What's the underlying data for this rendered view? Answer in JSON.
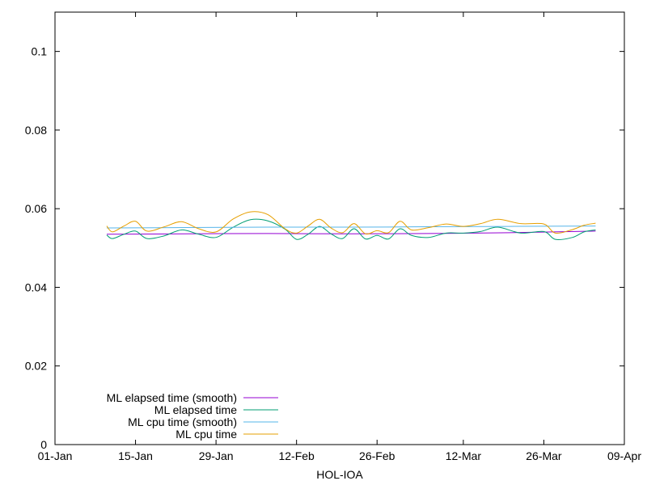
{
  "chart_data": {
    "type": "line",
    "title": "",
    "xlabel": "HOL-IOA",
    "ylabel": "",
    "x_axis": {
      "type": "date",
      "range": [
        "2024-01-01",
        "2024-04-09"
      ],
      "ticks": [
        {
          "date": "2024-01-01",
          "label": "01-Jan"
        },
        {
          "date": "2024-01-15",
          "label": "15-Jan"
        },
        {
          "date": "2024-01-29",
          "label": "29-Jan"
        },
        {
          "date": "2024-02-12",
          "label": "12-Feb"
        },
        {
          "date": "2024-02-26",
          "label": "26-Feb"
        },
        {
          "date": "2024-03-12",
          "label": "12-Mar"
        },
        {
          "date": "2024-03-26",
          "label": "26-Mar"
        },
        {
          "date": "2024-04-09",
          "label": "09-Apr"
        }
      ]
    },
    "y_axis": {
      "range": [
        0,
        0.11
      ],
      "ticks": [
        {
          "value": 0,
          "label": "0"
        },
        {
          "value": 0.02,
          "label": "0.02"
        },
        {
          "value": 0.04,
          "label": "0.04"
        },
        {
          "value": 0.06,
          "label": "0.06"
        },
        {
          "value": 0.08,
          "label": "0.08"
        },
        {
          "value": 0.1,
          "label": "0.1"
        }
      ]
    },
    "grid": false,
    "legend": {
      "position": "bottom-left"
    },
    "series": [
      {
        "name": "ML elapsed time (smooth)",
        "color": "#9400d3",
        "x": [
          "2024-01-10",
          "2024-01-24",
          "2024-02-07",
          "2024-02-21",
          "2024-03-06",
          "2024-03-20",
          "2024-04-04"
        ],
        "y": [
          0.0535,
          0.0536,
          0.0537,
          0.0536,
          0.0537,
          0.0539,
          0.0543
        ]
      },
      {
        "name": "ML elapsed time",
        "color": "#009e73",
        "x": [
          "2024-01-10",
          "2024-01-11",
          "2024-01-13",
          "2024-01-15",
          "2024-01-17",
          "2024-01-20",
          "2024-01-23",
          "2024-01-26",
          "2024-01-29",
          "2024-02-01",
          "2024-02-04",
          "2024-02-07",
          "2024-02-10",
          "2024-02-12",
          "2024-02-14",
          "2024-02-16",
          "2024-02-18",
          "2024-02-20",
          "2024-02-22",
          "2024-02-24",
          "2024-02-26",
          "2024-02-28",
          "2024-03-01",
          "2024-03-03",
          "2024-03-06",
          "2024-03-09",
          "2024-03-12",
          "2024-03-15",
          "2024-03-18",
          "2024-03-22",
          "2024-03-26",
          "2024-03-28",
          "2024-03-31",
          "2024-04-02",
          "2024-04-04"
        ],
        "y": [
          0.0533,
          0.0524,
          0.0535,
          0.0543,
          0.0524,
          0.0531,
          0.0546,
          0.0535,
          0.0527,
          0.0553,
          0.0572,
          0.0569,
          0.0548,
          0.0522,
          0.0535,
          0.0555,
          0.0536,
          0.0524,
          0.0549,
          0.0523,
          0.0532,
          0.0523,
          0.0549,
          0.0532,
          0.0527,
          0.0538,
          0.0538,
          0.0542,
          0.0553,
          0.0538,
          0.0542,
          0.0522,
          0.0527,
          0.0541,
          0.0546
        ]
      },
      {
        "name": "ML cpu time (smooth)",
        "color": "#56b4e9",
        "x": [
          "2024-01-10",
          "2024-01-24",
          "2024-02-07",
          "2024-02-21",
          "2024-03-06",
          "2024-03-20",
          "2024-04-04"
        ],
        "y": [
          0.0551,
          0.0552,
          0.0553,
          0.0553,
          0.0554,
          0.0555,
          0.0556
        ]
      },
      {
        "name": "ML cpu time",
        "color": "#e69f00",
        "x": [
          "2024-01-10",
          "2024-01-11",
          "2024-01-13",
          "2024-01-15",
          "2024-01-17",
          "2024-01-20",
          "2024-01-23",
          "2024-01-26",
          "2024-01-29",
          "2024-02-01",
          "2024-02-04",
          "2024-02-07",
          "2024-02-10",
          "2024-02-12",
          "2024-02-14",
          "2024-02-16",
          "2024-02-18",
          "2024-02-20",
          "2024-02-22",
          "2024-02-24",
          "2024-02-26",
          "2024-02-28",
          "2024-03-01",
          "2024-03-03",
          "2024-03-06",
          "2024-03-09",
          "2024-03-12",
          "2024-03-15",
          "2024-03-18",
          "2024-03-22",
          "2024-03-26",
          "2024-03-28",
          "2024-03-31",
          "2024-04-02",
          "2024-04-04"
        ],
        "y": [
          0.0556,
          0.0541,
          0.0556,
          0.0568,
          0.0543,
          0.0554,
          0.0567,
          0.0549,
          0.0541,
          0.0574,
          0.0592,
          0.0585,
          0.0549,
          0.0538,
          0.0556,
          0.0573,
          0.0551,
          0.0539,
          0.0562,
          0.0536,
          0.0544,
          0.0539,
          0.0568,
          0.0546,
          0.0552,
          0.0561,
          0.0555,
          0.0562,
          0.0573,
          0.0562,
          0.0561,
          0.0538,
          0.0547,
          0.0558,
          0.0563
        ]
      }
    ]
  }
}
